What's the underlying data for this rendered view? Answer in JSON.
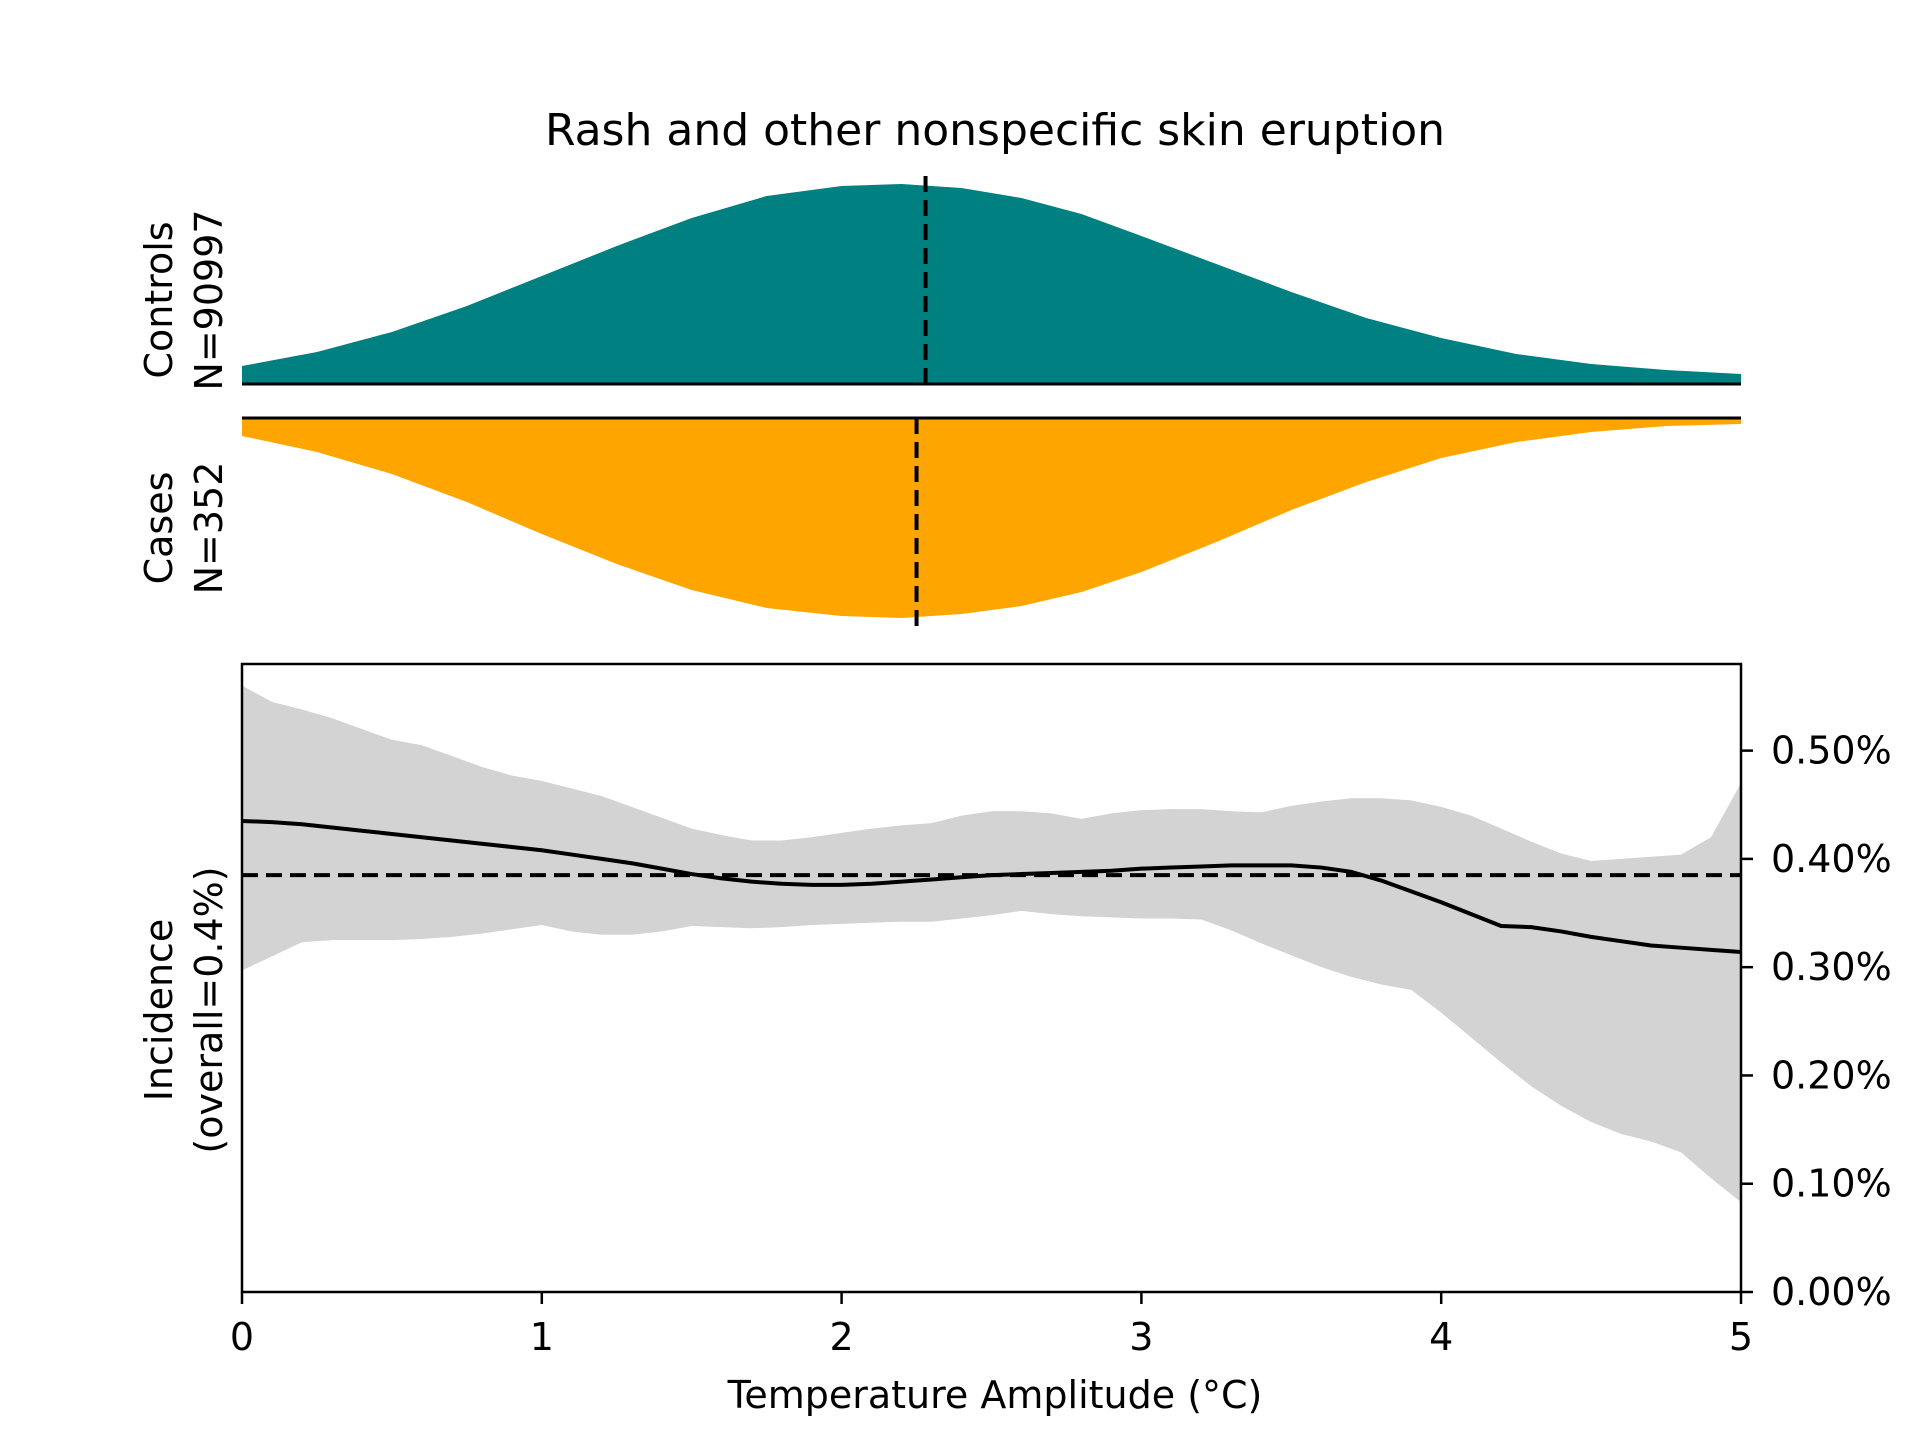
{
  "chart_data": {
    "title": "Rash and other nonspecific skin eruption",
    "type": "composite",
    "xlabel": "Temperature Amplitude (°C)",
    "xlim": [
      0,
      5
    ],
    "x_ticks": [
      0,
      1,
      2,
      3,
      4,
      5
    ],
    "x_tick_labels": [
      "0",
      "1",
      "2",
      "3",
      "4",
      "5"
    ],
    "controls": {
      "label_line1": "Controls",
      "label_line2": "N=90997",
      "color": "#008080",
      "type": "area",
      "median": 2.28,
      "x": [
        0,
        0.25,
        0.5,
        0.75,
        1.0,
        1.25,
        1.5,
        1.75,
        2.0,
        2.2,
        2.4,
        2.6,
        2.8,
        3.0,
        3.25,
        3.5,
        3.75,
        4.0,
        4.25,
        4.5,
        4.75,
        5.0
      ],
      "density": [
        0.09,
        0.16,
        0.26,
        0.39,
        0.54,
        0.69,
        0.83,
        0.94,
        0.99,
        1.0,
        0.98,
        0.93,
        0.85,
        0.74,
        0.6,
        0.46,
        0.33,
        0.23,
        0.15,
        0.1,
        0.07,
        0.05
      ]
    },
    "cases": {
      "label_line1": "Cases",
      "label_line2": "N=352",
      "color": "#ffa500",
      "type": "area",
      "median": 2.25,
      "x": [
        0,
        0.25,
        0.5,
        0.75,
        1.0,
        1.25,
        1.5,
        1.75,
        2.0,
        2.2,
        2.4,
        2.6,
        2.8,
        3.0,
        3.25,
        3.5,
        3.75,
        4.0,
        4.25,
        4.5,
        4.75,
        5.0
      ],
      "density": [
        0.09,
        0.17,
        0.28,
        0.42,
        0.58,
        0.73,
        0.86,
        0.95,
        0.99,
        1.0,
        0.98,
        0.94,
        0.87,
        0.77,
        0.62,
        0.46,
        0.32,
        0.2,
        0.12,
        0.07,
        0.04,
        0.03
      ]
    },
    "incidence": {
      "type": "line",
      "ylabel_line1": "Incidence",
      "ylabel_line2": "(overall=0.4%)",
      "ylim": [
        0,
        0.58
      ],
      "y_ticks": [
        0.0,
        0.1,
        0.2,
        0.3,
        0.4,
        0.5
      ],
      "y_tick_labels": [
        "0.00%",
        "0.10%",
        "0.20%",
        "0.30%",
        "0.40%",
        "0.50%"
      ],
      "overall": 0.385,
      "line_color": "#000000",
      "band_color": "#d3d3d3",
      "x": [
        0,
        0.1,
        0.2,
        0.3,
        0.4,
        0.5,
        0.6,
        0.7,
        0.8,
        0.9,
        1.0,
        1.1,
        1.2,
        1.3,
        1.4,
        1.5,
        1.6,
        1.7,
        1.8,
        1.9,
        2.0,
        2.1,
        2.2,
        2.3,
        2.4,
        2.5,
        2.6,
        2.7,
        2.8,
        2.9,
        3.0,
        3.1,
        3.2,
        3.3,
        3.4,
        3.5,
        3.6,
        3.7,
        3.8,
        3.9,
        4.0,
        4.1,
        4.2,
        4.3,
        4.4,
        4.5,
        4.6,
        4.7,
        4.8,
        4.9,
        5.0
      ],
      "y": [
        0.435,
        0.434,
        0.432,
        0.429,
        0.426,
        0.423,
        0.42,
        0.417,
        0.414,
        0.411,
        0.408,
        0.404,
        0.4,
        0.396,
        0.391,
        0.386,
        0.382,
        0.379,
        0.377,
        0.376,
        0.376,
        0.377,
        0.379,
        0.381,
        0.383,
        0.385,
        0.386,
        0.387,
        0.388,
        0.389,
        0.391,
        0.392,
        0.393,
        0.394,
        0.394,
        0.394,
        0.392,
        0.388,
        0.38,
        0.37,
        0.36,
        0.349,
        0.338,
        0.337,
        0.333,
        0.328,
        0.324,
        0.32,
        0.318,
        0.316,
        0.314
      ],
      "y_upper": [
        0.56,
        0.545,
        0.538,
        0.53,
        0.52,
        0.51,
        0.505,
        0.495,
        0.485,
        0.477,
        0.472,
        0.465,
        0.458,
        0.448,
        0.438,
        0.428,
        0.422,
        0.417,
        0.417,
        0.42,
        0.424,
        0.428,
        0.431,
        0.433,
        0.44,
        0.444,
        0.444,
        0.442,
        0.437,
        0.442,
        0.445,
        0.446,
        0.446,
        0.444,
        0.443,
        0.449,
        0.453,
        0.456,
        0.456,
        0.454,
        0.448,
        0.44,
        0.428,
        0.416,
        0.405,
        0.398,
        0.4,
        0.402,
        0.404,
        0.42,
        0.47
      ],
      "y_lower": [
        0.297,
        0.31,
        0.323,
        0.325,
        0.325,
        0.325,
        0.326,
        0.328,
        0.331,
        0.335,
        0.339,
        0.333,
        0.33,
        0.33,
        0.333,
        0.338,
        0.337,
        0.336,
        0.337,
        0.339,
        0.34,
        0.341,
        0.342,
        0.342,
        0.345,
        0.348,
        0.352,
        0.349,
        0.347,
        0.346,
        0.345,
        0.345,
        0.344,
        0.334,
        0.322,
        0.311,
        0.3,
        0.291,
        0.284,
        0.279,
        0.258,
        0.235,
        0.212,
        0.19,
        0.172,
        0.157,
        0.146,
        0.139,
        0.129,
        0.105,
        0.083
      ]
    }
  }
}
